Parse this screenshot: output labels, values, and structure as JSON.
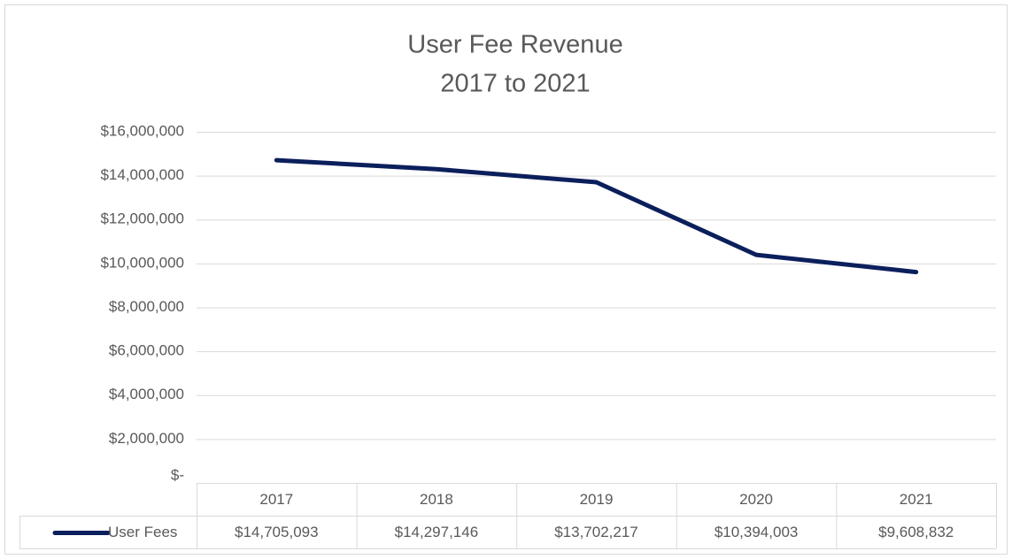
{
  "chart_data": {
    "type": "line",
    "title": "User Fee Revenue",
    "subtitle": "2017 to 2021",
    "categories": [
      "2017",
      "2018",
      "2019",
      "2020",
      "2021"
    ],
    "series": [
      {
        "name": "User Fees",
        "color": "#0b1f5c",
        "values": [
          14705093,
          14297146,
          13702217,
          10394003,
          9608832
        ],
        "value_labels": [
          "$14,705,093",
          "$14,297,146",
          "$13,702,217",
          "$10,394,003",
          "$9,608,832"
        ]
      }
    ],
    "ylim": [
      0,
      16000000
    ],
    "yticks": [
      {
        "value": 0,
        "label": "$-"
      },
      {
        "value": 2000000,
        "label": "$2,000,000"
      },
      {
        "value": 4000000,
        "label": "$4,000,000"
      },
      {
        "value": 6000000,
        "label": "$6,000,000"
      },
      {
        "value": 8000000,
        "label": "$8,000,000"
      },
      {
        "value": 10000000,
        "label": "$10,000,000"
      },
      {
        "value": 12000000,
        "label": "$12,000,000"
      },
      {
        "value": 14000000,
        "label": "$14,000,000"
      },
      {
        "value": 16000000,
        "label": "$16,000,000"
      }
    ],
    "grid": true,
    "data_table": true
  }
}
